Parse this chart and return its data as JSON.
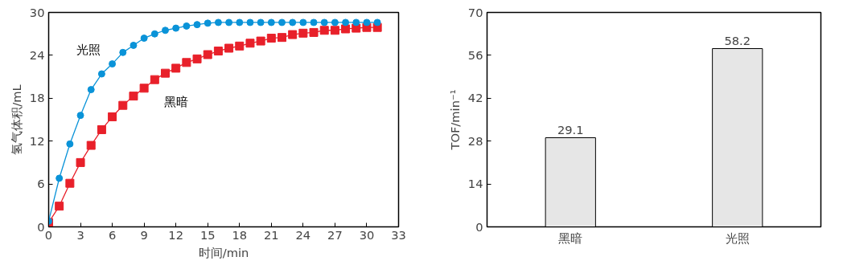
{
  "chart_data": [
    {
      "type": "line",
      "xlabel": "时间/min",
      "ylabel": "氢气体积/mL",
      "xlim": [
        0,
        33
      ],
      "ylim": [
        0,
        30
      ],
      "xticks": [
        0,
        3,
        6,
        9,
        12,
        15,
        18,
        21,
        24,
        27,
        30,
        33
      ],
      "yticks": [
        0,
        6,
        12,
        18,
        24,
        30
      ],
      "grid": false,
      "x": [
        0,
        1,
        2,
        3,
        4,
        5,
        6,
        7,
        8,
        9,
        10,
        11,
        12,
        13,
        14,
        15,
        16,
        17,
        18,
        19,
        20,
        21,
        22,
        23,
        24,
        25,
        26,
        27,
        28,
        29,
        30,
        31
      ],
      "series": [
        {
          "name": "光照",
          "color": "#0a93d8",
          "marker": "circle",
          "values": [
            0.8,
            6.8,
            11.6,
            15.6,
            19.2,
            21.4,
            22.8,
            24.4,
            25.4,
            26.4,
            27.0,
            27.5,
            27.8,
            28.1,
            28.3,
            28.5,
            28.6,
            28.6,
            28.6,
            28.6,
            28.6,
            28.6,
            28.6,
            28.6,
            28.6,
            28.6,
            28.6,
            28.6,
            28.6,
            28.6,
            28.6,
            28.6
          ]
        },
        {
          "name": "黑暗",
          "color": "#e8202a",
          "marker": "square",
          "values": [
            0.6,
            2.9,
            6.1,
            9.0,
            11.4,
            13.6,
            15.4,
            17.0,
            18.3,
            19.4,
            20.6,
            21.5,
            22.2,
            23.0,
            23.5,
            24.1,
            24.6,
            25.0,
            25.3,
            25.7,
            26.0,
            26.4,
            26.5,
            26.9,
            27.1,
            27.2,
            27.5,
            27.5,
            27.7,
            27.8,
            27.9,
            27.9
          ]
        }
      ]
    },
    {
      "type": "bar",
      "ylabel": "TOF/min⁻¹",
      "categories": [
        "黑暗",
        "光照"
      ],
      "values": [
        29.1,
        58.2
      ],
      "color": "#e6e6e6",
      "ylim": [
        0,
        70
      ],
      "yticks": [
        0,
        14,
        28,
        42,
        56,
        70
      ],
      "data_labels": true,
      "grid": false
    }
  ]
}
